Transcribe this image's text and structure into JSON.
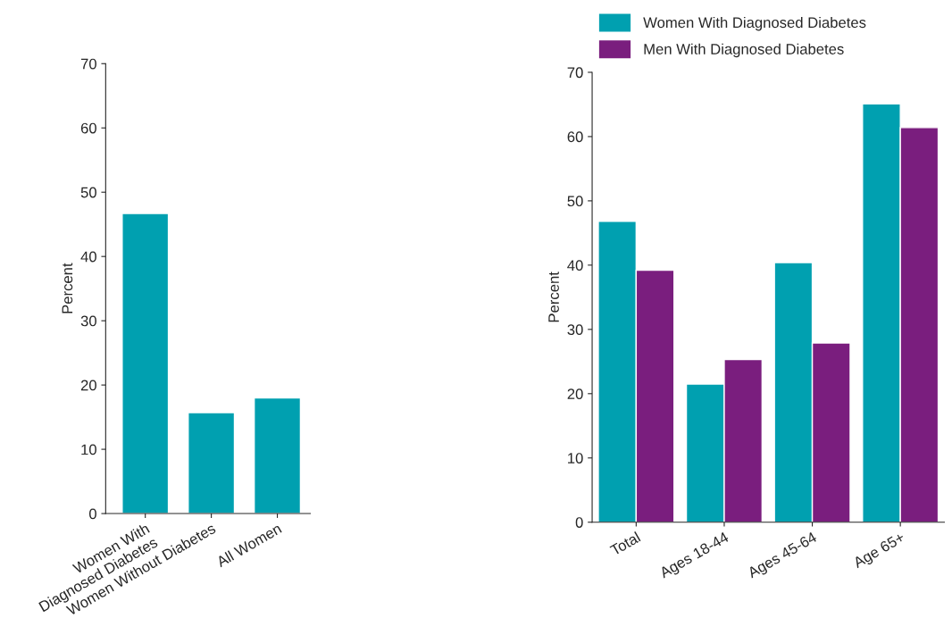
{
  "chart_data": [
    {
      "type": "bar",
      "ylabel": "Percent",
      "categories": [
        "Women With\nDiagnosed Diabetes",
        "Women Without Diabetes",
        "All Women"
      ],
      "ylim": [
        0,
        70
      ],
      "yticks": [
        0,
        10,
        20,
        30,
        40,
        50,
        60,
        70
      ],
      "grid": false,
      "legend": false,
      "series": [
        {
          "color": "#00a0b0",
          "values": [
            46.7,
            15.7,
            18.0
          ]
        }
      ]
    },
    {
      "type": "bar",
      "ylabel": "Percent",
      "categories": [
        "Total",
        "Ages 18-44",
        "Ages 45-64",
        "Age 65+"
      ],
      "ylim": [
        0,
        70
      ],
      "yticks": [
        0,
        10,
        20,
        30,
        40,
        50,
        60,
        70
      ],
      "grid": false,
      "legend": "top left",
      "series": [
        {
          "name": "Women With Diagnosed Diabetes",
          "color": "#00a0b0",
          "values": [
            46.8,
            21.5,
            40.4,
            65.1
          ]
        },
        {
          "name": "Men With Diagnosed Diabetes",
          "color": "#7a1e7e",
          "values": [
            39.2,
            25.3,
            27.9,
            61.4
          ]
        }
      ]
    }
  ]
}
